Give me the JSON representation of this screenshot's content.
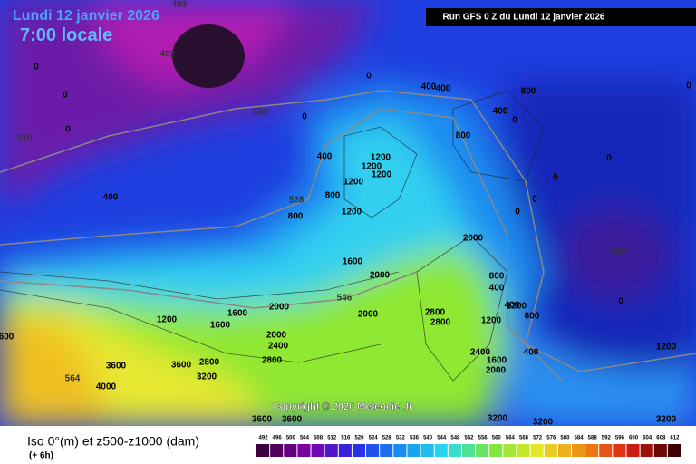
{
  "header": {
    "date": "Lundi 12 janvier 2026",
    "time": "7:00 locale",
    "run": "Run GFS 0 Z du Lundi 12 janvier 2026"
  },
  "footer": {
    "title": "Iso 0°(m) et z500-z1000 (dam)",
    "step": "(+ 6h)",
    "copyright": "Copyright © 2026 Meteociel.fr"
  },
  "scale": [
    492,
    496,
    500,
    504,
    508,
    512,
    516,
    520,
    524,
    528,
    532,
    536,
    540,
    544,
    548,
    552,
    556,
    560,
    564,
    568,
    572,
    576,
    580,
    584,
    588,
    592,
    596,
    600,
    604,
    608,
    612
  ],
  "map_labels": [
    492,
    492,
    510,
    510,
    510,
    528,
    546,
    564,
    0,
    0,
    0,
    0,
    0,
    0,
    0,
    0,
    0,
    0,
    0,
    0,
    400,
    400,
    400,
    400,
    400,
    400,
    400,
    400,
    800,
    800,
    800,
    800,
    800,
    800,
    1200,
    1200,
    1200,
    1200,
    1200,
    1200,
    1200,
    1200,
    1200,
    1600,
    1600,
    1600,
    1600,
    2000,
    2000,
    2000,
    2000,
    2000,
    2000,
    2400,
    2400,
    2800,
    2800,
    2800,
    2800,
    3200,
    3200,
    3200,
    3200,
    3600,
    3600,
    3600,
    3600,
    4000,
    600
  ]
}
